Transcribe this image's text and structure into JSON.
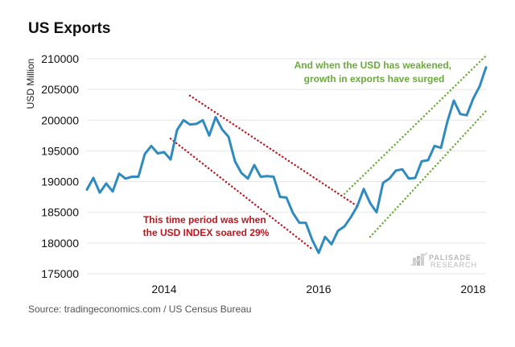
{
  "chart_data": {
    "type": "line",
    "title": "US Exports",
    "xlabel": "",
    "ylabel": "USD Million",
    "ylim": [
      175000,
      210000
    ],
    "yticks": [
      175000,
      180000,
      185000,
      190000,
      195000,
      200000,
      205000,
      210000
    ],
    "xticks": [
      "2014",
      "2016",
      "2018"
    ],
    "xlim": [
      "2013-01",
      "2018-03"
    ],
    "grid": "horizontal",
    "series": [
      {
        "color": "#2f8bbf",
        "x": [
          "2013-01",
          "2013-02",
          "2013-03",
          "2013-04",
          "2013-05",
          "2013-06",
          "2013-07",
          "2013-08",
          "2013-09",
          "2013-10",
          "2013-11",
          "2013-12",
          "2014-01",
          "2014-02",
          "2014-03",
          "2014-04",
          "2014-05",
          "2014-06",
          "2014-07",
          "2014-08",
          "2014-09",
          "2014-10",
          "2014-11",
          "2014-12",
          "2015-01",
          "2015-02",
          "2015-03",
          "2015-04",
          "2015-05",
          "2015-06",
          "2015-07",
          "2015-08",
          "2015-09",
          "2015-10",
          "2015-11",
          "2015-12",
          "2016-01",
          "2016-02",
          "2016-03",
          "2016-04",
          "2016-05",
          "2016-06",
          "2016-07",
          "2016-08",
          "2016-09",
          "2016-10",
          "2016-11",
          "2016-12",
          "2017-01",
          "2017-02",
          "2017-03",
          "2017-04",
          "2017-05",
          "2017-06",
          "2017-07",
          "2017-08",
          "2017-09",
          "2017-10",
          "2017-11",
          "2017-12",
          "2018-01",
          "2018-02",
          "2018-03"
        ],
        "values": [
          188700,
          190600,
          188200,
          189700,
          188400,
          191300,
          190500,
          190800,
          190800,
          194500,
          195800,
          194600,
          194800,
          193600,
          198400,
          200000,
          199300,
          199400,
          200000,
          197500,
          200500,
          198500,
          197300,
          193300,
          191400,
          190500,
          192700,
          190800,
          190900,
          190800,
          187500,
          187400,
          184900,
          183300,
          183300,
          180500,
          178400,
          181000,
          179800,
          182000,
          182700,
          184200,
          186000,
          188800,
          186500,
          185000,
          189800,
          190500,
          191800,
          192000,
          190500,
          190600,
          193300,
          193500,
          195800,
          195500,
          199800,
          203200,
          201000,
          200800,
          203500,
          205500,
          208600
        ]
      }
    ],
    "annotations": [
      {
        "text": [
          "This time period was when",
          "the USD INDEX soared 29%"
        ],
        "color": "#c0141c"
      },
      {
        "text": [
          "And when the USD has weakened,",
          "growth in exports have surged"
        ],
        "color": "#6aab3a"
      }
    ],
    "trend_lines": [
      {
        "color": "#c0141c",
        "style": "dotted",
        "from": [
          "2014-05",
          204000
        ],
        "to": [
          "2016-07",
          186000
        ]
      },
      {
        "color": "#c0141c",
        "style": "dotted",
        "from": [
          "2014-02",
          197000
        ],
        "to": [
          "2015-12",
          179000
        ]
      },
      {
        "color": "#6aab3a",
        "style": "dotted",
        "from": [
          "2016-05",
          188000
        ],
        "to": [
          "2018-03",
          210500
        ]
      },
      {
        "color": "#6aab3a",
        "style": "dotted",
        "from": [
          "2016-09",
          181000
        ],
        "to": [
          "2018-03",
          201500
        ]
      }
    ]
  },
  "source": "Source:  tradingeconomics.com / US Census Bureau",
  "logo": {
    "name": "PALISADE",
    "sub": "RESEARCH"
  }
}
